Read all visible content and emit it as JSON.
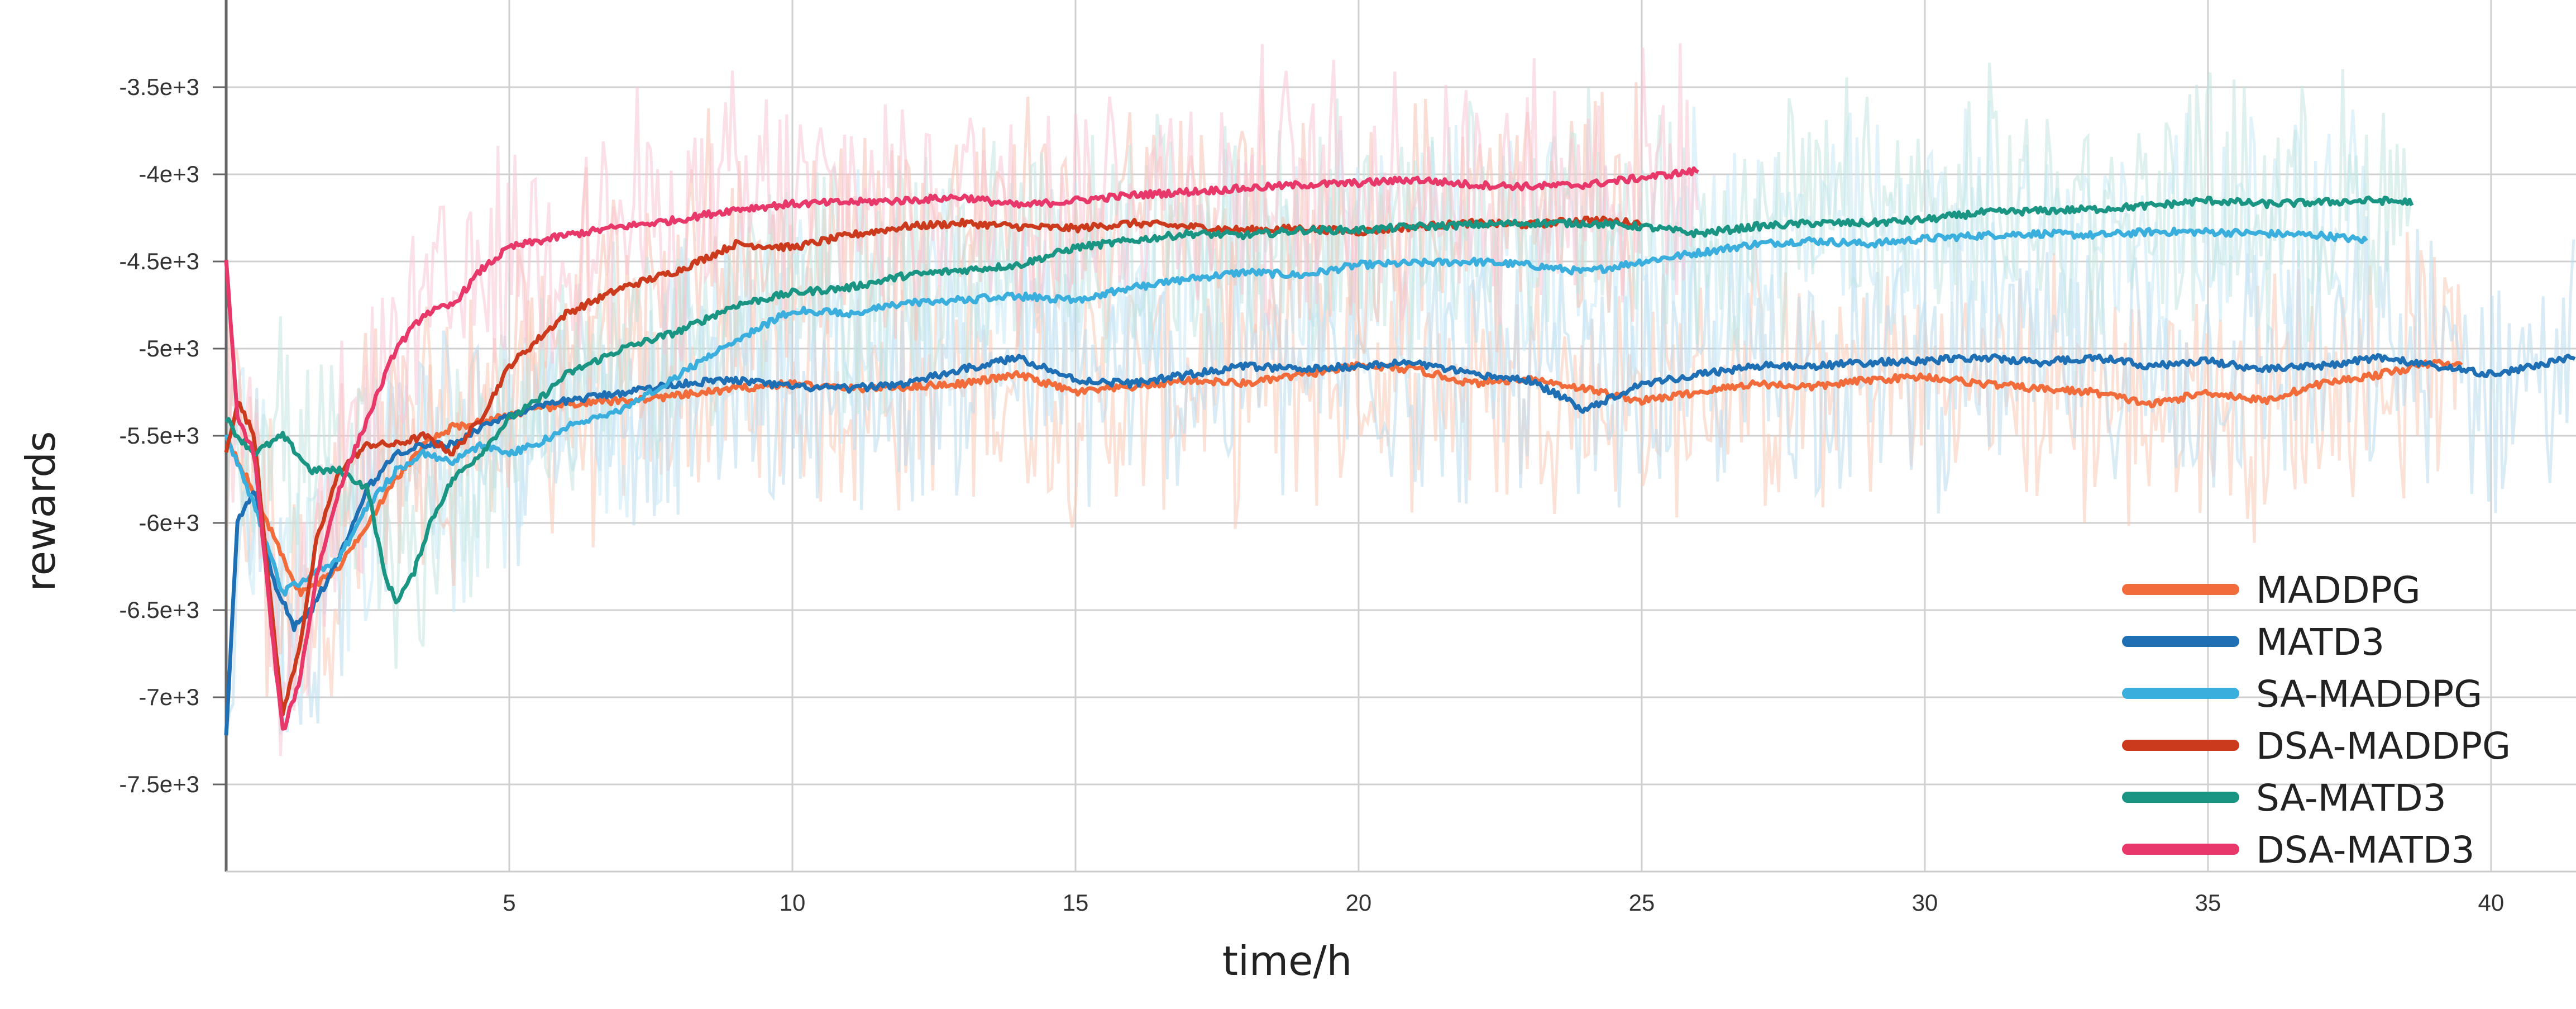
{
  "chart_data": {
    "type": "line",
    "title": "",
    "xlabel": "time/h",
    "ylabel": "rewards",
    "xlim": [
      0,
      41.5
    ],
    "ylim": [
      -8000,
      -3000
    ],
    "x_ticks": [
      5,
      10,
      15,
      20,
      25,
      30,
      35,
      40
    ],
    "x_tick_labels": [
      "5",
      "10",
      "15",
      "20",
      "25",
      "30",
      "35",
      "40"
    ],
    "y_ticks": [
      -3500,
      -4000,
      -4500,
      -5000,
      -5500,
      -6000,
      -6500,
      -7000,
      -7500
    ],
    "y_tick_labels": [
      "-3.5e+3",
      "-4e+3",
      "-4.5e+3",
      "-5e+3",
      "-5.5e+3",
      "-6e+3",
      "-6.5e+3",
      "-7e+3",
      "-7.5e+3"
    ],
    "grid": true,
    "legend_position": "bottom-right",
    "raw_traces_shown": true,
    "series": [
      {
        "name": "MADDPG",
        "color": "#F26B3A",
        "raw_color": "#F9C9B4",
        "x": [
          0,
          0.3,
          0.6,
          1,
          1.3,
          1.6,
          2,
          2.5,
          3,
          3.5,
          4,
          4.5,
          5,
          5.5,
          6,
          7,
          8,
          9,
          10,
          11,
          12,
          13,
          14,
          15,
          16,
          17,
          18,
          19,
          20,
          21,
          22,
          23,
          24,
          25,
          26,
          27,
          28,
          29,
          30,
          31,
          32,
          33,
          34,
          35,
          36,
          37,
          38,
          39,
          39.5
        ],
        "values": [
          -5500,
          -5700,
          -5900,
          -6200,
          -6400,
          -6350,
          -6250,
          -6000,
          -5750,
          -5550,
          -5450,
          -5420,
          -5380,
          -5350,
          -5320,
          -5300,
          -5270,
          -5230,
          -5200,
          -5230,
          -5220,
          -5200,
          -5150,
          -5250,
          -5220,
          -5180,
          -5200,
          -5150,
          -5100,
          -5120,
          -5200,
          -5170,
          -5230,
          -5300,
          -5250,
          -5200,
          -5220,
          -5180,
          -5160,
          -5200,
          -5230,
          -5250,
          -5320,
          -5250,
          -5300,
          -5200,
          -5150,
          -5080,
          -5100
        ]
      },
      {
        "name": "MATD3",
        "color": "#1F6FB5",
        "raw_color": "#B9DCEF",
        "x": [
          0,
          0.2,
          0.5,
          0.8,
          1.2,
          1.5,
          2,
          2.5,
          3,
          3.5,
          4,
          4.5,
          5,
          6,
          7,
          8,
          9,
          10,
          11,
          12,
          13,
          14,
          15,
          16,
          17,
          18,
          19,
          20,
          21,
          22,
          23,
          24,
          25,
          26,
          27,
          28,
          29,
          30,
          31,
          32,
          33,
          34,
          35,
          36,
          37,
          38,
          39,
          40,
          41.5
        ],
        "values": [
          -7200,
          -6000,
          -5800,
          -6300,
          -6600,
          -6500,
          -6200,
          -5800,
          -5600,
          -5550,
          -5550,
          -5450,
          -5380,
          -5300,
          -5250,
          -5200,
          -5180,
          -5220,
          -5230,
          -5200,
          -5120,
          -5050,
          -5180,
          -5200,
          -5150,
          -5100,
          -5120,
          -5100,
          -5080,
          -5150,
          -5180,
          -5350,
          -5200,
          -5150,
          -5100,
          -5100,
          -5080,
          -5070,
          -5050,
          -5080,
          -5050,
          -5100,
          -5070,
          -5120,
          -5100,
          -5050,
          -5100,
          -5150,
          -5050
        ]
      },
      {
        "name": "SA-MADDPG",
        "color": "#3AAEDC",
        "raw_color": "#C6E8F5",
        "x": [
          0,
          0.5,
          1,
          1.5,
          2,
          2.5,
          3,
          3.5,
          4,
          4.5,
          5,
          5.5,
          6,
          7,
          8,
          9,
          10,
          11,
          12,
          13,
          14,
          15,
          16,
          17,
          18,
          19,
          20,
          21,
          22,
          23,
          24,
          25,
          26,
          27,
          28,
          29,
          30,
          31,
          32,
          33,
          34,
          35,
          36,
          37,
          37.8
        ],
        "values": [
          -5500,
          -5900,
          -6400,
          -6300,
          -6200,
          -5900,
          -5700,
          -5600,
          -5650,
          -5550,
          -5600,
          -5550,
          -5450,
          -5350,
          -5150,
          -4950,
          -4780,
          -4800,
          -4740,
          -4720,
          -4700,
          -4720,
          -4650,
          -4600,
          -4560,
          -4580,
          -4520,
          -4510,
          -4500,
          -4520,
          -4560,
          -4500,
          -4450,
          -4400,
          -4380,
          -4400,
          -4370,
          -4350,
          -4340,
          -4350,
          -4330,
          -4330,
          -4340,
          -4350,
          -4380
        ]
      },
      {
        "name": "DSA-MADDPG",
        "color": "#CC3A1E",
        "raw_color": "#F6C2B2",
        "x": [
          0,
          0.2,
          0.5,
          0.8,
          1,
          1.3,
          1.6,
          2,
          2.5,
          3,
          3.5,
          4,
          4.5,
          5,
          6,
          7,
          8,
          9,
          10,
          11,
          12,
          13,
          14,
          15,
          16,
          17,
          18,
          19,
          20,
          21,
          22,
          23,
          24,
          25
        ],
        "values": [
          -5600,
          -5300,
          -5500,
          -6500,
          -7100,
          -6700,
          -6100,
          -5700,
          -5550,
          -5550,
          -5500,
          -5600,
          -5400,
          -5100,
          -4800,
          -4650,
          -4550,
          -4400,
          -4420,
          -4350,
          -4300,
          -4280,
          -4300,
          -4310,
          -4280,
          -4300,
          -4320,
          -4310,
          -4330,
          -4300,
          -4280,
          -4290,
          -4260,
          -4280
        ]
      },
      {
        "name": "SA-MATD3",
        "color": "#1A9584",
        "raw_color": "#C3E6E0",
        "x": [
          0,
          0.2,
          0.5,
          1,
          1.5,
          2,
          2.5,
          2.8,
          3,
          3.3,
          3.6,
          4,
          4.5,
          5,
          5.5,
          6,
          7,
          8,
          9,
          10,
          11,
          12,
          13,
          14,
          15,
          16,
          17,
          18,
          19,
          20,
          21,
          22,
          23,
          24,
          25,
          26,
          27,
          28,
          29,
          30,
          31,
          32,
          33,
          34,
          35,
          36,
          37,
          38,
          38.6
        ],
        "values": [
          -5400,
          -5500,
          -5600,
          -5500,
          -5700,
          -5700,
          -5800,
          -6300,
          -6450,
          -6300,
          -6000,
          -5750,
          -5600,
          -5400,
          -5300,
          -5150,
          -5000,
          -4900,
          -4750,
          -4680,
          -4650,
          -4580,
          -4550,
          -4520,
          -4420,
          -4380,
          -4340,
          -4350,
          -4320,
          -4320,
          -4300,
          -4290,
          -4280,
          -4280,
          -4300,
          -4340,
          -4300,
          -4280,
          -4280,
          -4260,
          -4220,
          -4210,
          -4200,
          -4180,
          -4150,
          -4170,
          -4160,
          -4150,
          -4160
        ]
      },
      {
        "name": "DSA-MATD3",
        "color": "#E8386A",
        "raw_color": "#F8C6D6",
        "x": [
          0,
          0.2,
          0.5,
          0.8,
          1,
          1.3,
          1.6,
          2,
          2.5,
          3,
          3.5,
          4,
          4.5,
          5,
          6,
          7,
          8,
          9,
          10,
          11,
          12,
          13,
          14,
          15,
          16,
          17,
          18,
          19,
          20,
          21,
          22,
          23,
          24,
          25,
          26
        ],
        "values": [
          -4500,
          -5400,
          -5600,
          -6600,
          -7200,
          -6900,
          -6300,
          -5800,
          -5400,
          -5000,
          -4800,
          -4750,
          -4550,
          -4420,
          -4350,
          -4300,
          -4260,
          -4200,
          -4170,
          -4160,
          -4150,
          -4130,
          -4180,
          -4150,
          -4120,
          -4100,
          -4080,
          -4060,
          -4050,
          -4030,
          -4060,
          -4070,
          -4060,
          -4020,
          -3980
        ]
      }
    ]
  }
}
